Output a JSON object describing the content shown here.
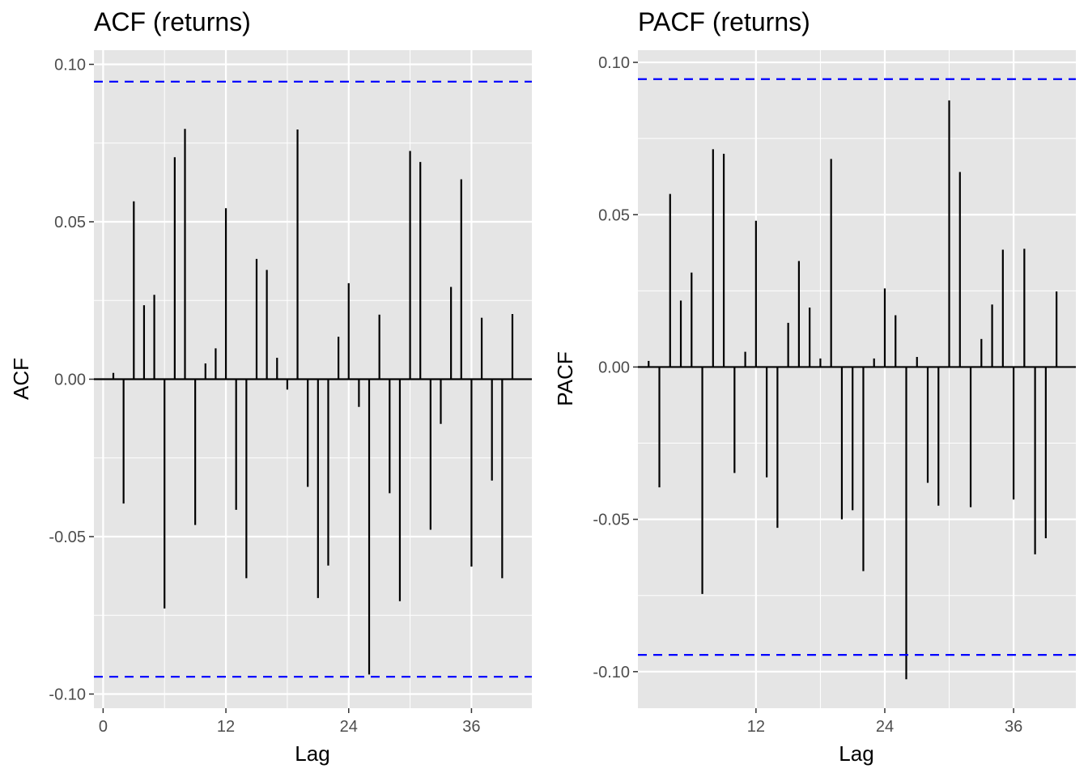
{
  "chart_data": [
    {
      "type": "bar",
      "title": "ACF (returns)",
      "xlabel": "Lag",
      "ylabel": "ACF",
      "xlim": [
        -0.9,
        41.9
      ],
      "ylim": [
        -0.1045,
        0.1045
      ],
      "x_ticks": [
        0,
        12,
        24,
        36
      ],
      "x_tick_labels": [
        "0",
        "12",
        "24",
        "36"
      ],
      "y_ticks": [
        -0.1,
        -0.05,
        0.0,
        0.05,
        0.1
      ],
      "y_tick_labels": [
        "-0.10",
        "-0.05",
        "0.00",
        "0.05",
        "0.10"
      ],
      "grid": true,
      "confidence_bound": 0.0945,
      "confidence_color": "#0000ff",
      "x": [
        1,
        2,
        3,
        4,
        5,
        6,
        7,
        8,
        9,
        10,
        11,
        12,
        13,
        14,
        15,
        16,
        17,
        18,
        19,
        20,
        21,
        22,
        23,
        24,
        25,
        26,
        27,
        28,
        29,
        30,
        31,
        32,
        33,
        34,
        35,
        36,
        37,
        38,
        39,
        40
      ],
      "values": [
        0.002,
        -0.0395,
        0.0565,
        0.0235,
        0.0268,
        -0.0728,
        0.0705,
        0.0795,
        -0.0463,
        0.005,
        0.0098,
        0.0543,
        -0.0415,
        -0.0632,
        0.0382,
        0.0347,
        0.0068,
        -0.0033,
        0.0793,
        -0.0342,
        -0.0695,
        -0.0592,
        0.0135,
        0.0305,
        -0.0088,
        -0.0938,
        0.0205,
        -0.0362,
        -0.0705,
        0.0725,
        0.069,
        -0.0478,
        -0.0142,
        0.0293,
        0.0635,
        -0.0595,
        0.0195,
        -0.0322,
        -0.0632,
        0.0207
      ]
    },
    {
      "type": "bar",
      "title": "PACF (returns)",
      "xlabel": "Lag",
      "ylabel": "PACF",
      "xlim": [
        1,
        41.8
      ],
      "ylim": [
        -0.112,
        0.104
      ],
      "x_ticks": [
        12,
        24,
        36
      ],
      "x_tick_labels": [
        "12",
        "24",
        "36"
      ],
      "y_ticks": [
        -0.1,
        -0.05,
        0.0,
        0.05,
        0.1
      ],
      "y_tick_labels": [
        "-0.10",
        "-0.05",
        "0.00",
        "0.05",
        "0.10"
      ],
      "grid": true,
      "confidence_bound": 0.0945,
      "confidence_color": "#0000ff",
      "x": [
        2,
        3,
        4,
        5,
        6,
        7,
        8,
        9,
        10,
        11,
        12,
        13,
        14,
        15,
        16,
        17,
        18,
        19,
        20,
        21,
        22,
        23,
        24,
        25,
        26,
        27,
        28,
        29,
        30,
        31,
        32,
        33,
        34,
        35,
        36,
        37,
        38,
        39,
        40,
        41
      ],
      "values": [
        0.002,
        -0.0395,
        0.0568,
        0.0218,
        0.031,
        -0.0745,
        0.0715,
        0.07,
        -0.0348,
        0.005,
        0.048,
        -0.0362,
        -0.0528,
        0.0145,
        0.0348,
        0.0195,
        0.0028,
        0.0683,
        -0.05,
        -0.047,
        -0.067,
        0.0028,
        0.0258,
        0.017,
        -0.1025,
        0.0033,
        -0.038,
        -0.0455,
        0.0875,
        0.064,
        -0.046,
        0.0092,
        0.0205,
        0.0385,
        -0.0435,
        0.0388,
        -0.0615,
        -0.0562,
        0.0248,
        0.0
      ]
    }
  ]
}
